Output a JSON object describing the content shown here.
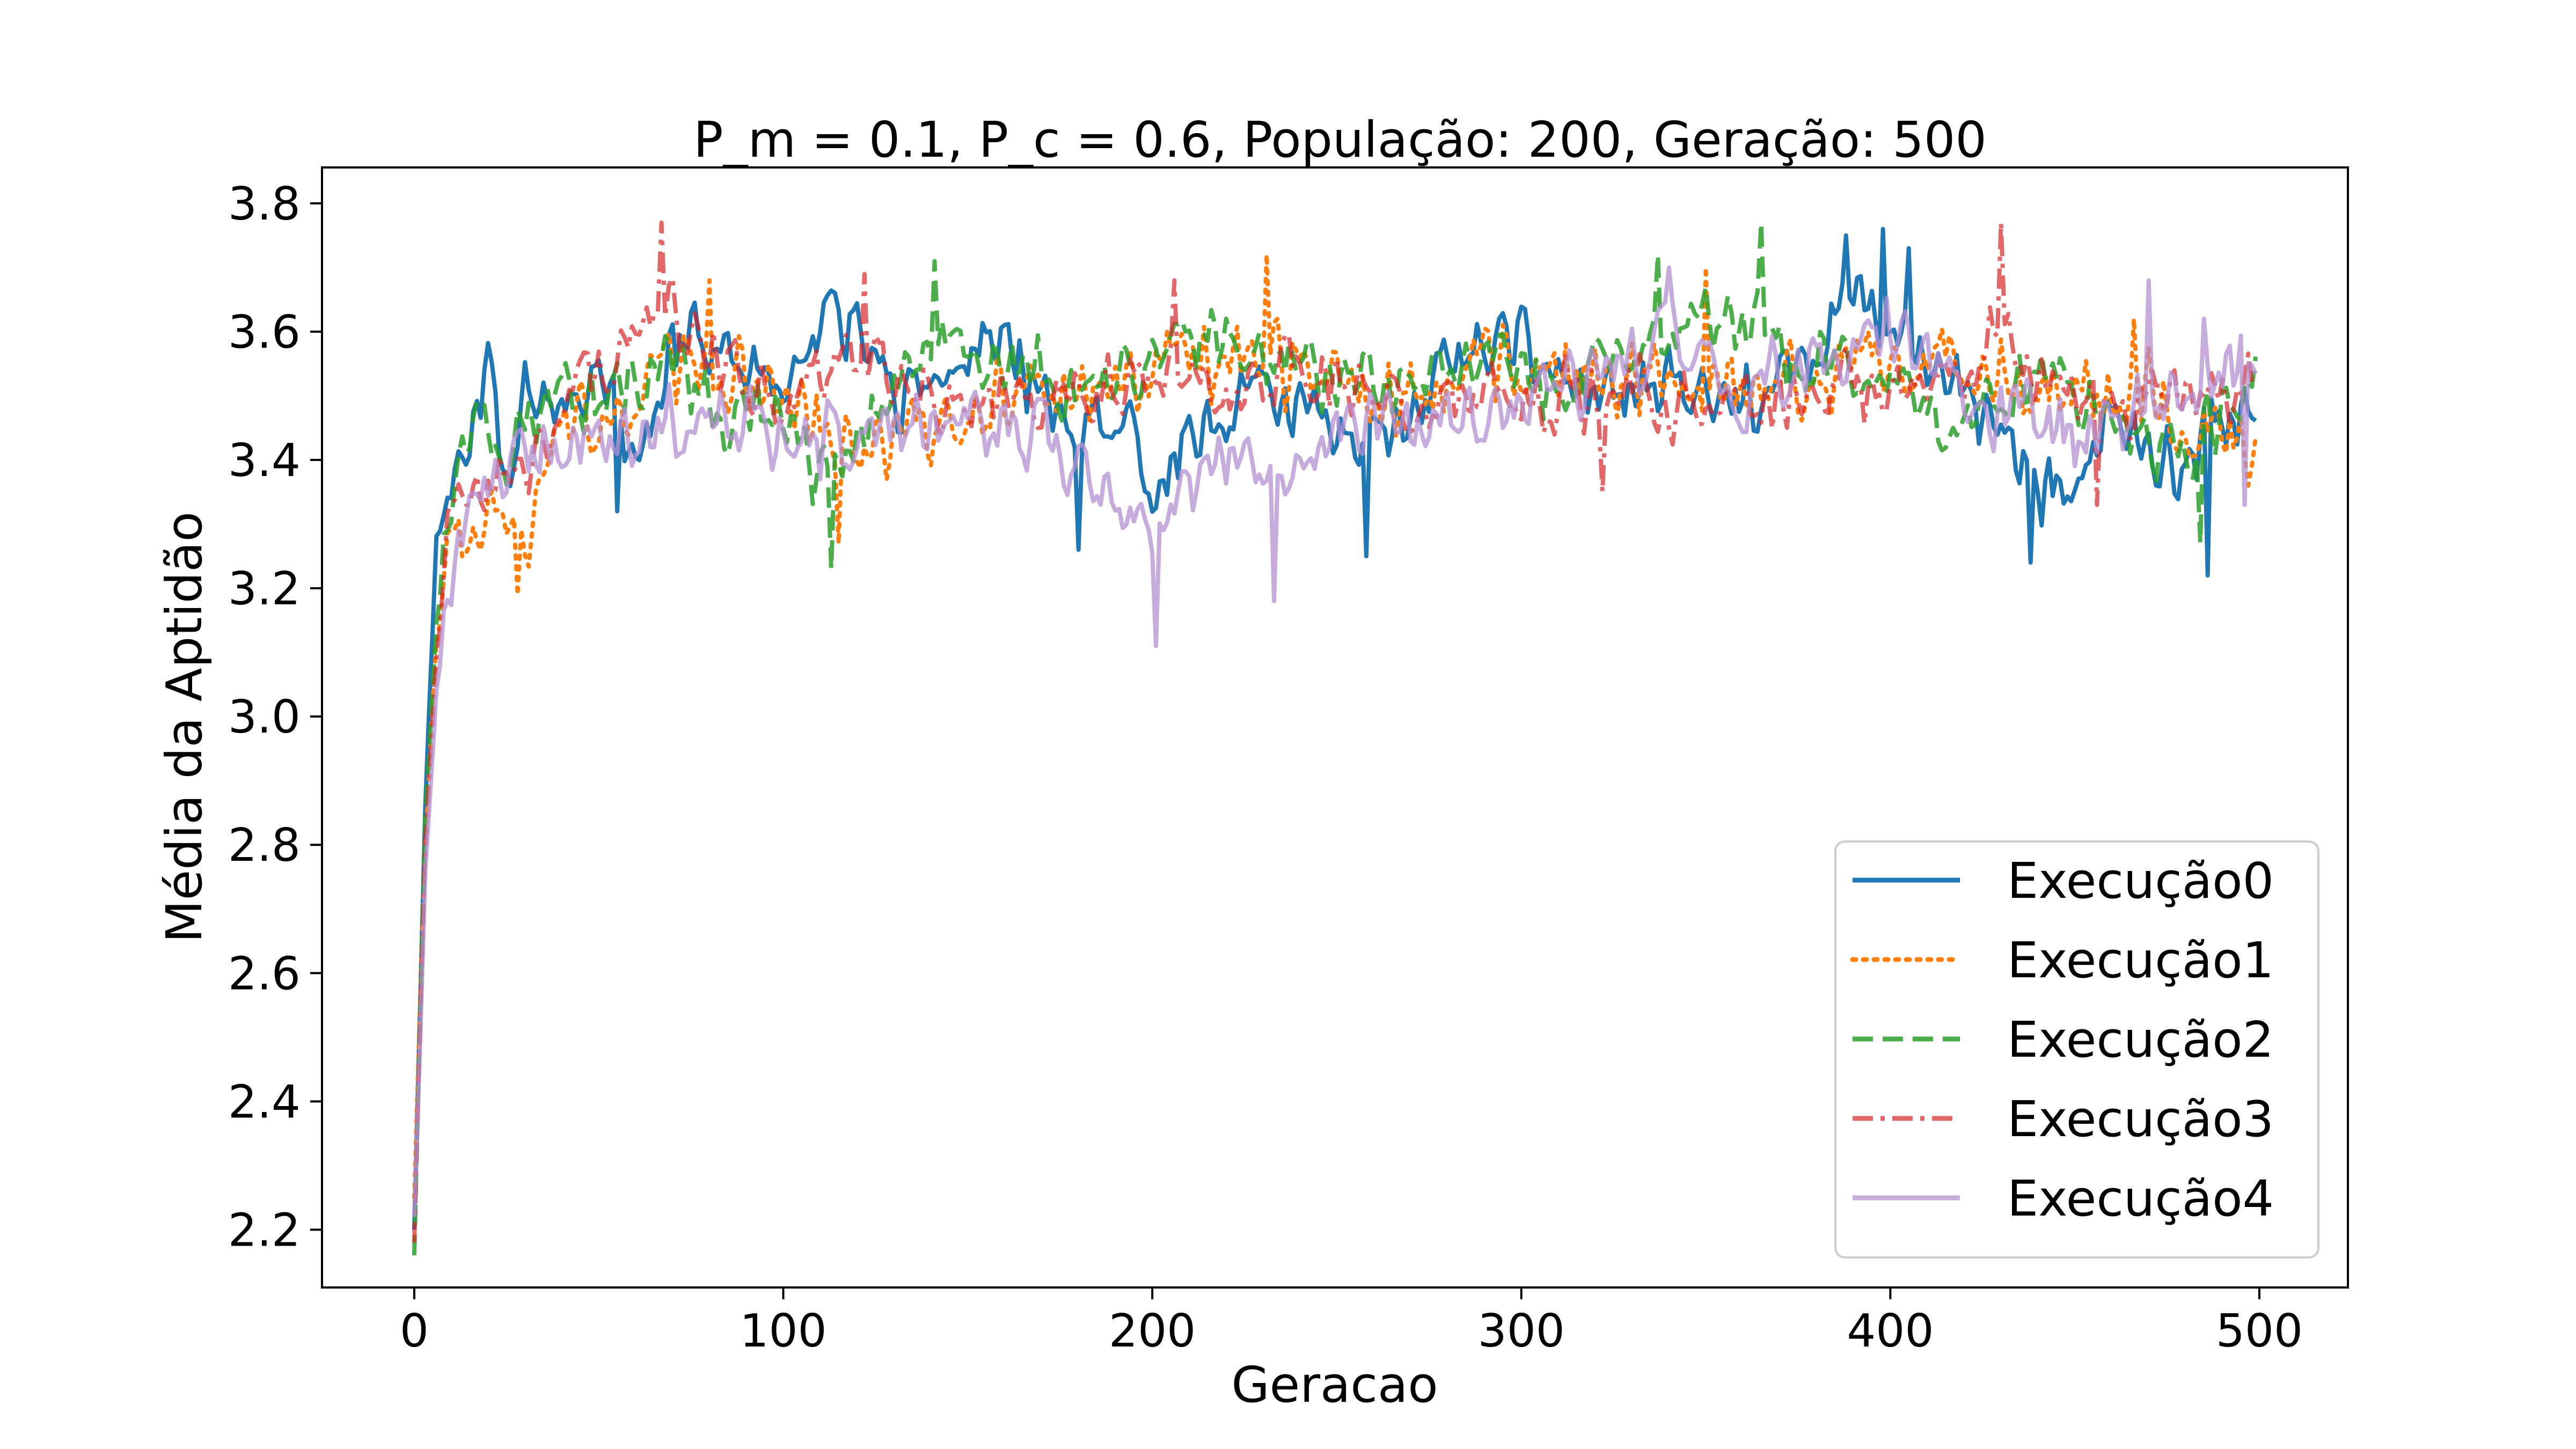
{
  "chart_data": {
    "type": "line",
    "title": "P_m = 0.1, P_c = 0.6, População: 200, Geração: 500",
    "xlabel": "Geracao",
    "ylabel": "Média da Aptidão",
    "xlim": [
      -25,
      524
    ],
    "ylim": [
      2.11,
      3.856
    ],
    "xticks": [
      "0",
      "100",
      "200",
      "300",
      "400",
      "500"
    ],
    "yticks": [
      "2.2",
      "2.4",
      "2.6",
      "2.8",
      "3.0",
      "3.2",
      "3.4",
      "3.6",
      "3.8"
    ],
    "grid": false,
    "legend_position": "lower right",
    "n_points": 500,
    "series": [
      {
        "name": "Execução0",
        "color": "#1f77b4",
        "dash": "solid",
        "opacity": 1.0,
        "start": 2.2,
        "anchors": [
          [
            0,
            2.2
          ],
          [
            3,
            2.85
          ],
          [
            6,
            3.28
          ],
          [
            10,
            3.33
          ],
          [
            15,
            3.45
          ],
          [
            20,
            3.55
          ],
          [
            25,
            3.35
          ],
          [
            30,
            3.52
          ],
          [
            40,
            3.48
          ],
          [
            50,
            3.55
          ],
          [
            60,
            3.35
          ],
          [
            70,
            3.6
          ],
          [
            80,
            3.58
          ],
          [
            90,
            3.55
          ],
          [
            100,
            3.52
          ],
          [
            110,
            3.6
          ],
          [
            120,
            3.62
          ],
          [
            130,
            3.48
          ],
          [
            140,
            3.55
          ],
          [
            160,
            3.58
          ],
          [
            180,
            3.45
          ],
          [
            190,
            3.5
          ],
          [
            200,
            3.32
          ],
          [
            210,
            3.45
          ],
          [
            230,
            3.5
          ],
          [
            250,
            3.45
          ],
          [
            260,
            3.4
          ],
          [
            280,
            3.55
          ],
          [
            300,
            3.58
          ],
          [
            320,
            3.5
          ],
          [
            340,
            3.52
          ],
          [
            360,
            3.48
          ],
          [
            380,
            3.55
          ],
          [
            390,
            3.65
          ],
          [
            400,
            3.62
          ],
          [
            420,
            3.5
          ],
          [
            440,
            3.35
          ],
          [
            460,
            3.45
          ],
          [
            480,
            3.4
          ],
          [
            498,
            3.5
          ]
        ],
        "noise": 0.07,
        "spikes": [
          [
            55,
            3.32
          ],
          [
            180,
            3.26
          ],
          [
            258,
            3.25
          ],
          [
            388,
            3.75
          ],
          [
            398,
            3.76
          ],
          [
            405,
            3.73
          ],
          [
            438,
            3.24
          ],
          [
            486,
            3.22
          ]
        ]
      },
      {
        "name": "Execução1",
        "color": "#ff7f0e",
        "dash": "dotted",
        "opacity": 1.0,
        "start": 2.25,
        "anchors": [
          [
            0,
            2.25
          ],
          [
            3,
            2.8
          ],
          [
            6,
            3.1
          ],
          [
            10,
            3.25
          ],
          [
            20,
            3.3
          ],
          [
            30,
            3.28
          ],
          [
            40,
            3.45
          ],
          [
            60,
            3.5
          ],
          [
            80,
            3.55
          ],
          [
            100,
            3.5
          ],
          [
            120,
            3.4
          ],
          [
            140,
            3.45
          ],
          [
            160,
            3.5
          ],
          [
            180,
            3.48
          ],
          [
            200,
            3.55
          ],
          [
            230,
            3.55
          ],
          [
            260,
            3.5
          ],
          [
            300,
            3.55
          ],
          [
            330,
            3.52
          ],
          [
            360,
            3.5
          ],
          [
            400,
            3.55
          ],
          [
            420,
            3.58
          ],
          [
            440,
            3.5
          ],
          [
            470,
            3.5
          ],
          [
            498,
            3.42
          ]
        ],
        "noise": 0.08,
        "spikes": [
          [
            28,
            3.19
          ],
          [
            80,
            3.68
          ],
          [
            115,
            3.27
          ],
          [
            231,
            3.72
          ],
          [
            350,
            3.7
          ],
          [
            466,
            3.62
          ],
          [
            497,
            3.36
          ]
        ]
      },
      {
        "name": "Execução2",
        "color": "#2ca02c",
        "dash": "dashed",
        "opacity": 0.85,
        "start": 2.16,
        "anchors": [
          [
            0,
            2.16
          ],
          [
            3,
            2.85
          ],
          [
            6,
            3.15
          ],
          [
            10,
            3.3
          ],
          [
            15,
            3.45
          ],
          [
            25,
            3.4
          ],
          [
            35,
            3.5
          ],
          [
            50,
            3.5
          ],
          [
            70,
            3.55
          ],
          [
            85,
            3.45
          ],
          [
            100,
            3.5
          ],
          [
            110,
            3.35
          ],
          [
            120,
            3.45
          ],
          [
            140,
            3.6
          ],
          [
            160,
            3.55
          ],
          [
            180,
            3.5
          ],
          [
            200,
            3.55
          ],
          [
            220,
            3.6
          ],
          [
            240,
            3.55
          ],
          [
            260,
            3.5
          ],
          [
            290,
            3.58
          ],
          [
            310,
            3.5
          ],
          [
            330,
            3.6
          ],
          [
            360,
            3.62
          ],
          [
            380,
            3.55
          ],
          [
            400,
            3.55
          ],
          [
            420,
            3.45
          ],
          [
            440,
            3.55
          ],
          [
            460,
            3.45
          ],
          [
            480,
            3.4
          ],
          [
            498,
            3.55
          ]
        ],
        "noise": 0.07,
        "spikes": [
          [
            0,
            2.16
          ],
          [
            113,
            3.23
          ],
          [
            141,
            3.71
          ],
          [
            337,
            3.72
          ],
          [
            365,
            3.77
          ],
          [
            484,
            3.27
          ]
        ]
      },
      {
        "name": "Execução3",
        "color": "#d62728",
        "dash": "dashdot",
        "opacity": 0.7,
        "start": 2.18,
        "anchors": [
          [
            0,
            2.18
          ],
          [
            3,
            2.8
          ],
          [
            6,
            3.1
          ],
          [
            10,
            3.3
          ],
          [
            20,
            3.35
          ],
          [
            30,
            3.4
          ],
          [
            40,
            3.5
          ],
          [
            55,
            3.55
          ],
          [
            68,
            3.65
          ],
          [
            80,
            3.55
          ],
          [
            100,
            3.5
          ],
          [
            120,
            3.55
          ],
          [
            140,
            3.5
          ],
          [
            160,
            3.48
          ],
          [
            180,
            3.5
          ],
          [
            200,
            3.55
          ],
          [
            220,
            3.5
          ],
          [
            240,
            3.55
          ],
          [
            260,
            3.5
          ],
          [
            280,
            3.48
          ],
          [
            300,
            3.5
          ],
          [
            330,
            3.5
          ],
          [
            360,
            3.48
          ],
          [
            380,
            3.52
          ],
          [
            400,
            3.5
          ],
          [
            420,
            3.55
          ],
          [
            430,
            3.6
          ],
          [
            445,
            3.5
          ],
          [
            470,
            3.48
          ],
          [
            498,
            3.5
          ]
        ],
        "noise": 0.07,
        "spikes": [
          [
            67,
            3.77
          ],
          [
            122,
            3.69
          ],
          [
            206,
            3.68
          ],
          [
            322,
            3.35
          ],
          [
            430,
            3.77
          ],
          [
            456,
            3.33
          ]
        ]
      },
      {
        "name": "Execução4",
        "color": "#b38fd1",
        "dash": "solid",
        "opacity": 0.75,
        "start": 2.22,
        "anchors": [
          [
            0,
            2.22
          ],
          [
            3,
            2.75
          ],
          [
            6,
            3.05
          ],
          [
            10,
            3.18
          ],
          [
            15,
            3.3
          ],
          [
            25,
            3.38
          ],
          [
            40,
            3.42
          ],
          [
            60,
            3.45
          ],
          [
            80,
            3.45
          ],
          [
            100,
            3.45
          ],
          [
            120,
            3.42
          ],
          [
            140,
            3.48
          ],
          [
            160,
            3.45
          ],
          [
            180,
            3.4
          ],
          [
            200,
            3.3
          ],
          [
            220,
            3.4
          ],
          [
            235,
            3.35
          ],
          [
            250,
            3.45
          ],
          [
            270,
            3.45
          ],
          [
            300,
            3.5
          ],
          [
            330,
            3.55
          ],
          [
            340,
            3.62
          ],
          [
            360,
            3.5
          ],
          [
            380,
            3.55
          ],
          [
            400,
            3.6
          ],
          [
            420,
            3.5
          ],
          [
            440,
            3.45
          ],
          [
            460,
            3.45
          ],
          [
            480,
            3.5
          ],
          [
            498,
            3.55
          ]
        ],
        "noise": 0.075,
        "spikes": [
          [
            201,
            3.11
          ],
          [
            233,
            3.18
          ],
          [
            340,
            3.7
          ],
          [
            470,
            3.68
          ],
          [
            485,
            3.62
          ],
          [
            496,
            3.33
          ]
        ]
      }
    ]
  }
}
